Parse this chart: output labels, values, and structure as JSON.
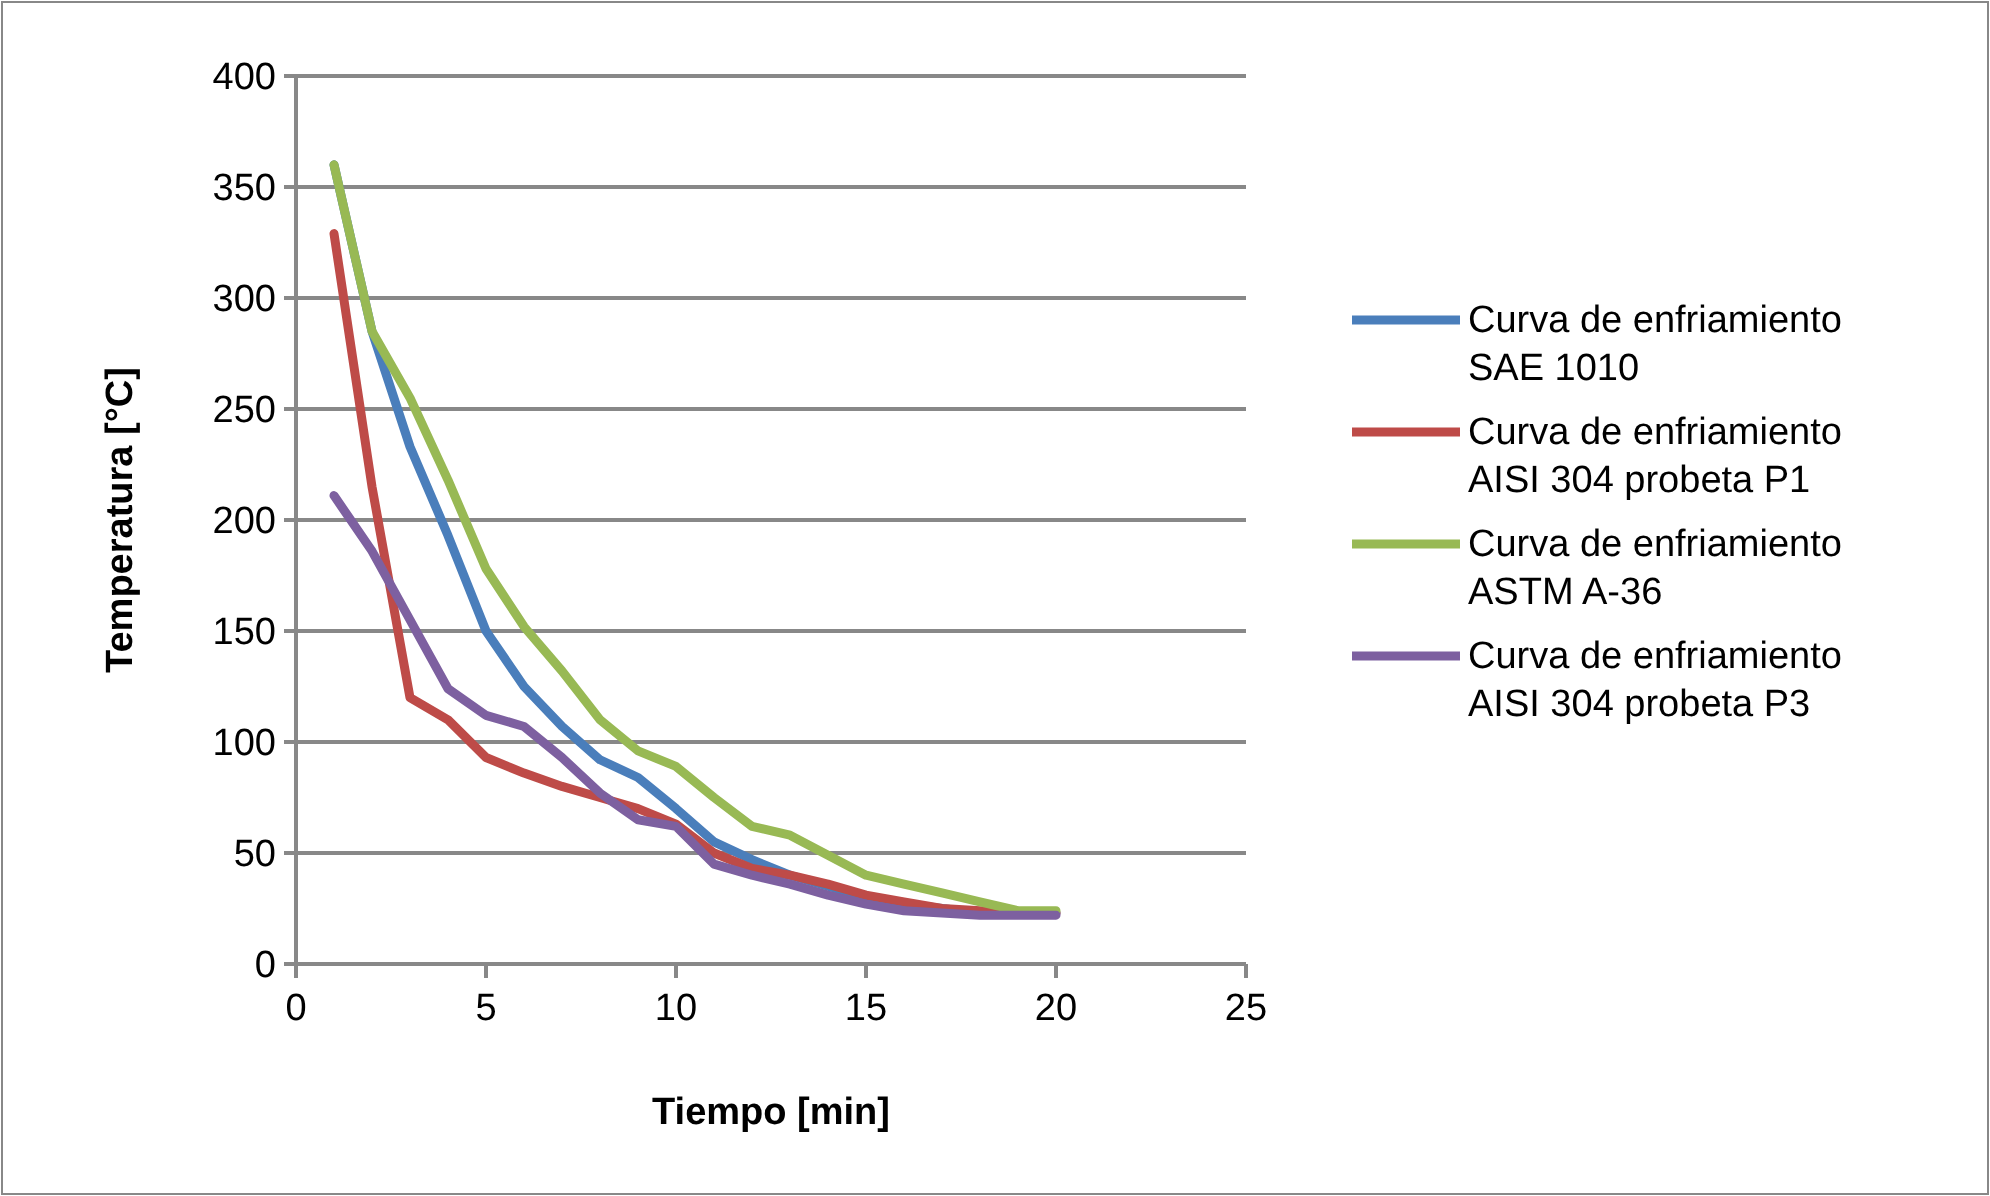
{
  "chart_data": {
    "type": "line",
    "xlabel": "Tiempo [min]",
    "ylabel": "Temperatura [°C]",
    "x": [
      1,
      2,
      3,
      4,
      5,
      6,
      7,
      8,
      9,
      10,
      11,
      12,
      13,
      14,
      15,
      16,
      17,
      18,
      19,
      20
    ],
    "xlim": [
      0,
      25
    ],
    "xticks": [
      0,
      5,
      10,
      15,
      20,
      25
    ],
    "ylim": [
      0,
      400
    ],
    "yticks": [
      0,
      50,
      100,
      150,
      200,
      250,
      300,
      350,
      400
    ],
    "grid": "y",
    "legend": "right",
    "marker": "none",
    "line_style": "solid",
    "series": [
      {
        "name": "Curva de enfriamiento SAE 1010",
        "color": "#4a7ebb",
        "values": [
          360,
          285,
          233,
          193,
          150,
          125,
          107,
          92,
          84,
          70,
          55,
          47,
          40,
          35,
          30,
          27,
          25,
          23,
          23,
          23
        ]
      },
      {
        "name": "Curva de enfriamiento AISI 304 probeta P1",
        "color": "#be4b48",
        "values": [
          329,
          215,
          120,
          110,
          93,
          86,
          80,
          75,
          70,
          63,
          50,
          43,
          40,
          36,
          31,
          28,
          25,
          24,
          23,
          23
        ]
      },
      {
        "name": "Curva de enfriamiento ASTM A-36",
        "color": "#98b954",
        "values": [
          360,
          285,
          255,
          218,
          178,
          152,
          132,
          110,
          96,
          89,
          75,
          62,
          58,
          49,
          40,
          36,
          32,
          28,
          24,
          24
        ]
      },
      {
        "name": "Curva de enfriamiento AISI 304 probeta P3",
        "color": "#7d60a0",
        "values": [
          211,
          186,
          155,
          124,
          112,
          107,
          93,
          77,
          65,
          62,
          45,
          40,
          36,
          31,
          27,
          24,
          23,
          22,
          22,
          22
        ]
      }
    ]
  }
}
